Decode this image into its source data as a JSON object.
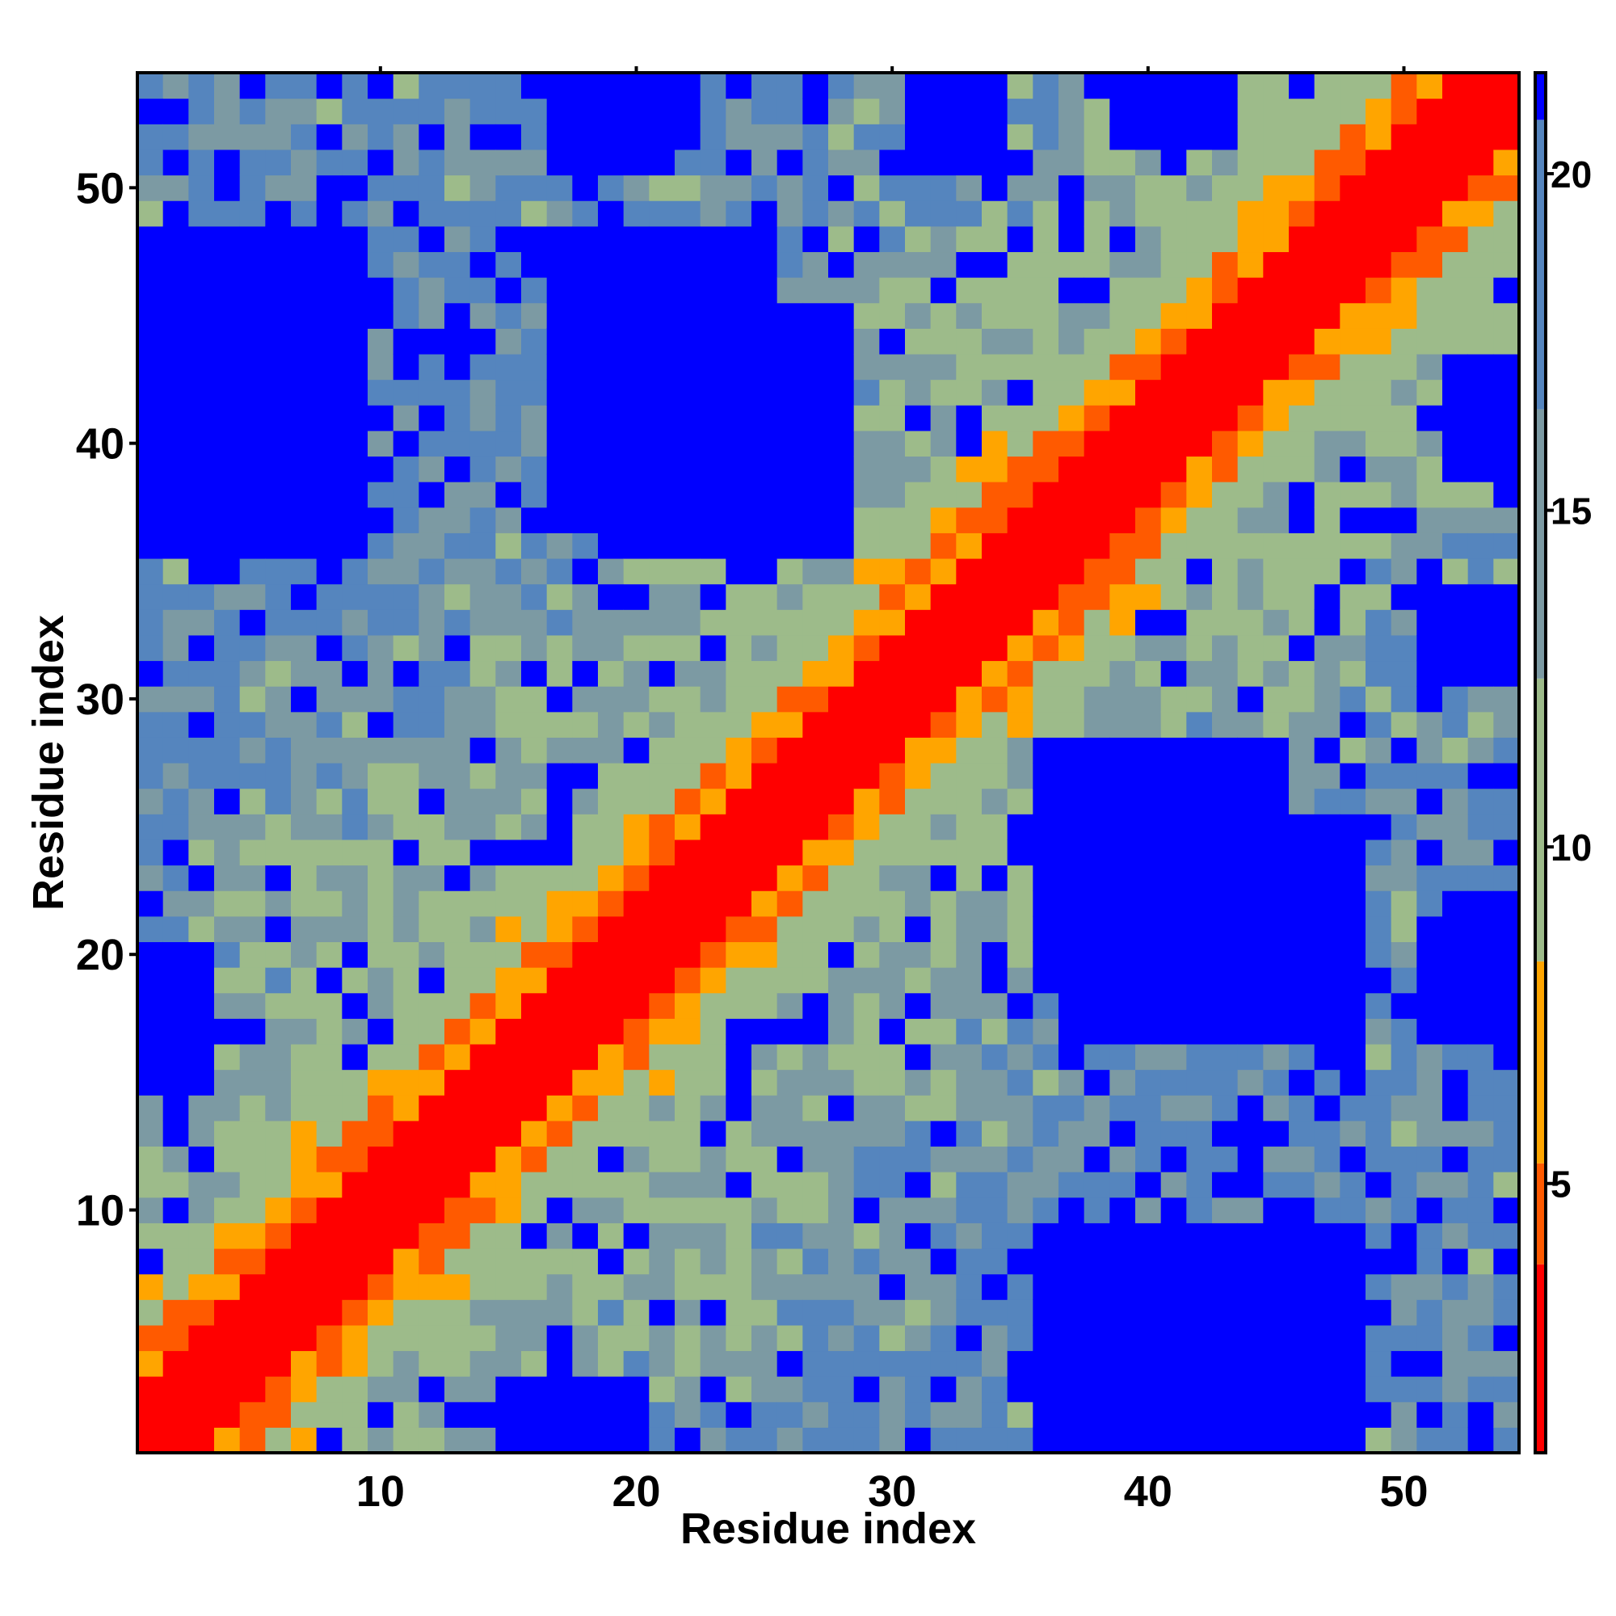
{
  "chart_data": {
    "type": "heatmap",
    "title": "",
    "xlabel": "Residue index",
    "ylabel": "Residue index",
    "n": 54,
    "xlim": [
      0.5,
      54.5
    ],
    "ylim": [
      0.5,
      54.5
    ],
    "x_ticks": [
      10,
      20,
      30,
      40,
      50
    ],
    "y_ticks": [
      10,
      20,
      30,
      40,
      50
    ],
    "x_tick_labels": [
      "10",
      "20",
      "30",
      "40",
      "50"
    ],
    "y_tick_labels": [
      "10",
      "20",
      "30",
      "40",
      "50"
    ],
    "colorbar": {
      "range": [
        1,
        21.5
      ],
      "ticks": [
        5,
        10,
        15,
        20
      ],
      "tick_labels": [
        "5",
        "10",
        "15",
        "20"
      ],
      "bands": [
        {
          "from": 1,
          "to": 3.8,
          "color": "#ff0000"
        },
        {
          "from": 3.8,
          "to": 5.3,
          "color": "#ff5a00"
        },
        {
          "from": 5.3,
          "to": 8.3,
          "color": "#ffa500"
        },
        {
          "from": 8.3,
          "to": 12.5,
          "color": "#9dbb8a"
        },
        {
          "from": 12.5,
          "to": 16.5,
          "color": "#7c9aa3"
        },
        {
          "from": 16.5,
          "to": 20.8,
          "color": "#5585be"
        },
        {
          "from": 20.8,
          "to": 21.5,
          "color": "#0000ff"
        }
      ]
    },
    "grid": false,
    "matrix_rule": "symmetric Cα distance-style map: value = f(|i-j|) + block distances; far regions saturate at the top of the scale",
    "far_blocks": [
      {
        "i": [
          1,
          9
        ],
        "j": [
          36,
          48
        ],
        "value": 21.5
      },
      {
        "i": [
          17,
          25
        ],
        "j": [
          37,
          48
        ],
        "value": 21.5
      },
      {
        "i": [
          36,
          45
        ],
        "j": [
          19,
          28
        ],
        "value": 21.5
      },
      {
        "i": [
          38,
          48
        ],
        "j": [
          1,
          8
        ],
        "value": 21.5
      },
      {
        "i": [
          1,
          3
        ],
        "j": [
          15,
          20
        ],
        "value": 21.5
      },
      {
        "i": [
          52,
          54
        ],
        "j": [
          17,
          22
        ],
        "value": 21.5
      },
      {
        "i": [
          52,
          54
        ],
        "j": [
          39,
          43
        ],
        "value": 21.5
      },
      {
        "i": [
          18,
          21
        ],
        "j": [
          51,
          54
        ],
        "value": 21.5
      },
      {
        "i": [
          31,
          34
        ],
        "j": [
          51,
          54
        ],
        "value": 21.5
      }
    ]
  }
}
